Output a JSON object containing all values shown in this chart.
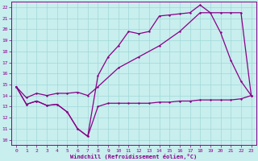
{
  "xlabel": "Windchill (Refroidissement éolien,°C)",
  "background_color": "#c8eeee",
  "grid_color": "#a0d8d8",
  "line_color": "#880088",
  "xlim": [
    -0.5,
    23.5
  ],
  "ylim": [
    9.5,
    22.5
  ],
  "yticks": [
    10,
    11,
    12,
    13,
    14,
    15,
    16,
    17,
    18,
    19,
    20,
    21,
    22
  ],
  "xticks": [
    0,
    1,
    2,
    3,
    4,
    5,
    6,
    7,
    8,
    9,
    10,
    11,
    12,
    13,
    14,
    15,
    16,
    17,
    18,
    19,
    20,
    21,
    22,
    23
  ],
  "line1_x": [
    0,
    1,
    2,
    3,
    4,
    5,
    6,
    7,
    8,
    9,
    10,
    11,
    12,
    13,
    14,
    15,
    16,
    17,
    18,
    19,
    20,
    21,
    22,
    23
  ],
  "line1_y": [
    14.8,
    13.2,
    13.5,
    13.1,
    13.2,
    12.5,
    11.0,
    10.3,
    13.0,
    13.3,
    13.3,
    13.3,
    13.3,
    13.3,
    13.4,
    13.4,
    13.5,
    13.5,
    13.6,
    13.6,
    13.6,
    13.6,
    13.7,
    14.0
  ],
  "line2_x": [
    0,
    1,
    2,
    3,
    4,
    5,
    6,
    7,
    8,
    9,
    10,
    11,
    12,
    13,
    14,
    15,
    16,
    17,
    18,
    19,
    20,
    21,
    22,
    23
  ],
  "line2_y": [
    14.8,
    13.2,
    13.5,
    13.1,
    13.2,
    12.5,
    11.0,
    10.3,
    15.8,
    17.5,
    18.5,
    19.8,
    19.6,
    19.8,
    21.2,
    21.3,
    21.4,
    21.5,
    22.2,
    21.5,
    19.7,
    17.2,
    15.3,
    14.0
  ],
  "line3_x": [
    0,
    1,
    2,
    3,
    4,
    5,
    6,
    7,
    8,
    10,
    12,
    14,
    16,
    18,
    20,
    21,
    22,
    23
  ],
  "line3_y": [
    14.8,
    13.8,
    14.2,
    14.0,
    14.2,
    14.2,
    14.3,
    14.0,
    14.8,
    16.5,
    17.5,
    18.5,
    19.8,
    21.5,
    21.5,
    21.5,
    21.5,
    14.0
  ]
}
